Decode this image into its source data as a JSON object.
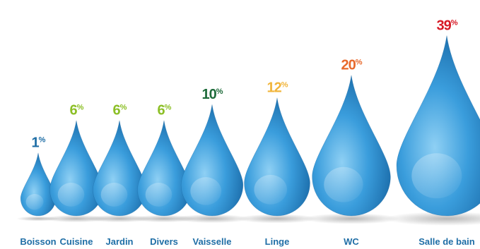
{
  "chart_data": {
    "type": "bar",
    "title": "",
    "xlabel": "",
    "ylabel": "",
    "value_suffix": "%",
    "categories": [
      "Boisson",
      "Cuisine",
      "Jardin",
      "Divers",
      "Vaisselle",
      "Linge",
      "WC",
      "Salle de bain"
    ],
    "values": [
      1,
      6,
      6,
      6,
      10,
      12,
      20,
      39
    ],
    "value_colors": [
      "#1f6ea6",
      "#8cbf26",
      "#8cbf26",
      "#8cbf26",
      "#1e6b3a",
      "#f1b53b",
      "#e8682a",
      "#d71a26"
    ],
    "label_color": "#1f6ea6",
    "drop_color": "#2f95d6",
    "drop_highlight": "#9fd6f5",
    "drop_shadow": "#0f5a96"
  }
}
